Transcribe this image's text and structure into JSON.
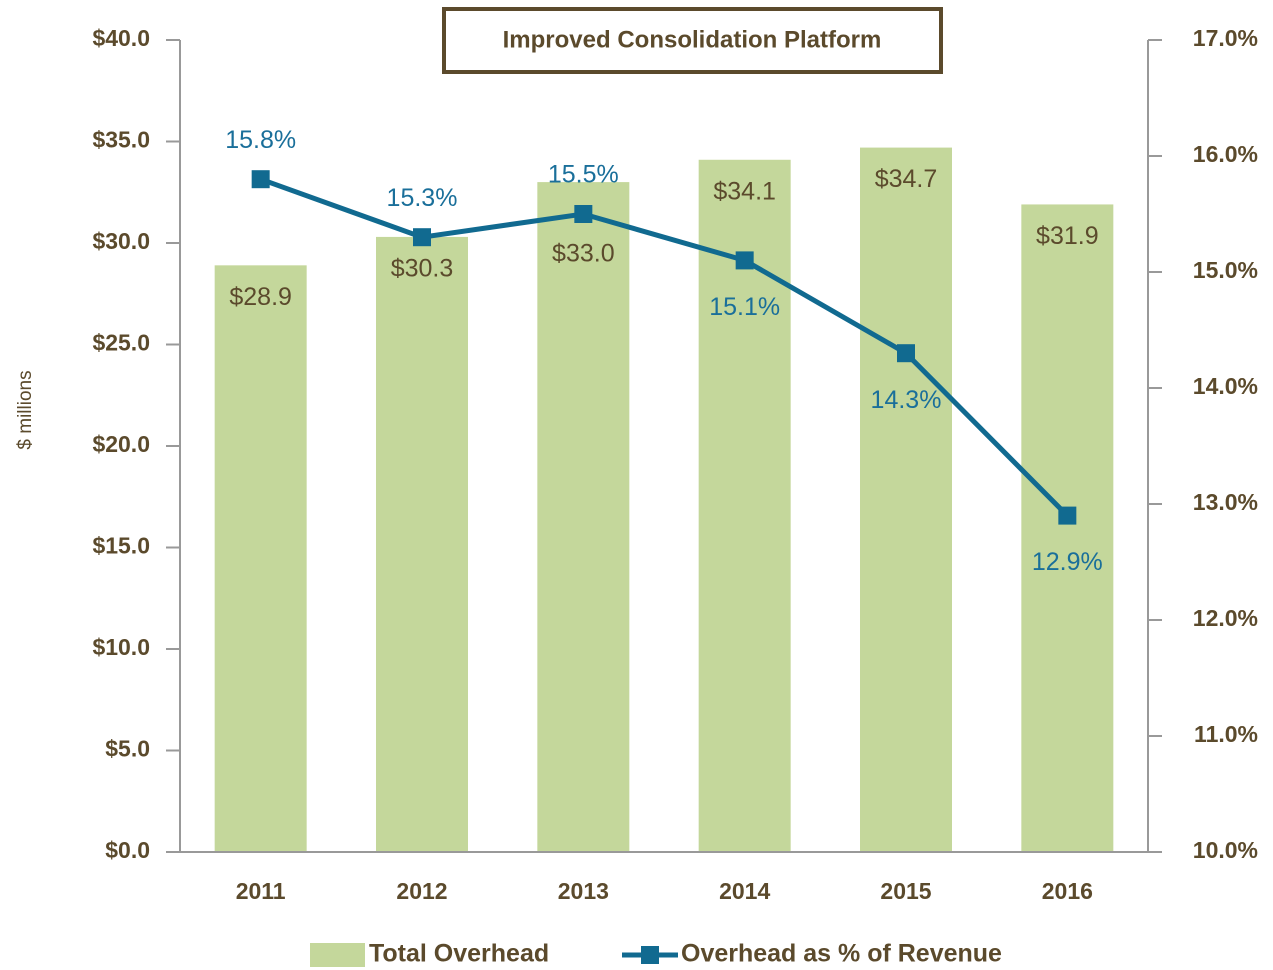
{
  "chart_data": {
    "type": "bar-line",
    "title": "Improved Consolidation Platform",
    "y_label": "$ millions",
    "categories": [
      "2011",
      "2012",
      "2013",
      "2014",
      "2015",
      "2016"
    ],
    "series": [
      {
        "name": "Total Overhead",
        "type": "bar",
        "color": "#c4d79b",
        "values": [
          28.9,
          30.3,
          33.0,
          34.1,
          34.7,
          31.9
        ],
        "value_labels": [
          "$28.9",
          "$30.3",
          "$33.0",
          "$34.1",
          "$34.7",
          "$31.9"
        ]
      },
      {
        "name": "Overhead as % of Revenue",
        "type": "line",
        "axis": "y2",
        "color": "#116a90",
        "values": [
          15.8,
          15.3,
          15.5,
          15.1,
          14.3,
          12.9
        ],
        "value_labels": [
          "15.8%",
          "15.3%",
          "15.5%",
          "15.1%",
          "14.3%",
          "12.9%"
        ]
      }
    ],
    "ylim": [
      0,
      40
    ],
    "yticks": [
      {
        "value": 0,
        "label": "$0.0"
      },
      {
        "value": 5,
        "label": "$5.0"
      },
      {
        "value": 10,
        "label": "$10.0"
      },
      {
        "value": 15,
        "label": "$15.0"
      },
      {
        "value": 20,
        "label": "$20.0"
      },
      {
        "value": 25,
        "label": "$25.0"
      },
      {
        "value": 30,
        "label": "$30.0"
      },
      {
        "value": 35,
        "label": "$35.0"
      },
      {
        "value": 40,
        "label": "$40.0"
      }
    ],
    "y2lim": [
      10,
      17
    ],
    "y2ticks": [
      {
        "value": 10,
        "label": "10.0%"
      },
      {
        "value": 11,
        "label": "11.0%"
      },
      {
        "value": 12,
        "label": "12.0%"
      },
      {
        "value": 13,
        "label": "13.0%"
      },
      {
        "value": 14,
        "label": "14.0%"
      },
      {
        "value": 15,
        "label": "15.0%"
      },
      {
        "value": 16,
        "label": "16.0%"
      },
      {
        "value": 17,
        "label": "17.0%"
      }
    ],
    "legend": "bottom"
  }
}
